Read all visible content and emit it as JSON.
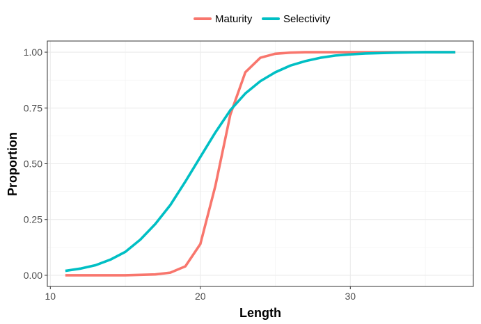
{
  "chart_data": {
    "type": "line",
    "xlabel": "Length",
    "ylabel": "Proportion",
    "xlim": [
      9.8,
      38.2
    ],
    "ylim": [
      -0.05,
      1.05
    ],
    "x_ticks": [
      10,
      20,
      30
    ],
    "y_ticks": [
      0.0,
      0.25,
      0.5,
      0.75,
      1.0
    ],
    "x_tick_labels": [
      "10",
      "20",
      "30"
    ],
    "y_tick_labels": [
      "0.00",
      "0.25",
      "0.50",
      "0.75",
      "1.00"
    ],
    "grid": true,
    "legend_position": "top",
    "series": [
      {
        "name": "Maturity",
        "color": "#F8766D",
        "x": [
          11,
          12,
          13,
          14,
          15,
          16,
          17,
          18,
          19,
          20,
          21,
          22,
          23,
          24,
          25,
          26,
          27,
          28,
          29,
          30,
          31,
          32,
          33,
          34,
          35,
          36,
          37
        ],
        "y": [
          0.0,
          0.0,
          0.0,
          0.0,
          0.0,
          0.002,
          0.004,
          0.012,
          0.04,
          0.14,
          0.4,
          0.72,
          0.91,
          0.975,
          0.993,
          0.998,
          1.0,
          1.0,
          1.0,
          1.0,
          1.0,
          1.0,
          1.0,
          1.0,
          1.0,
          1.0,
          1.0
        ]
      },
      {
        "name": "Selectivity",
        "color": "#00BFC4",
        "x": [
          11,
          12,
          13,
          14,
          15,
          16,
          17,
          18,
          19,
          20,
          21,
          22,
          23,
          24,
          25,
          26,
          27,
          28,
          29,
          30,
          31,
          32,
          33,
          34,
          35,
          36,
          37
        ],
        "y": [
          0.02,
          0.03,
          0.045,
          0.07,
          0.105,
          0.16,
          0.23,
          0.315,
          0.42,
          0.53,
          0.64,
          0.74,
          0.815,
          0.87,
          0.91,
          0.94,
          0.96,
          0.975,
          0.985,
          0.99,
          0.994,
          0.996,
          0.998,
          0.999,
          1.0,
          1.0,
          1.0
        ]
      }
    ]
  }
}
